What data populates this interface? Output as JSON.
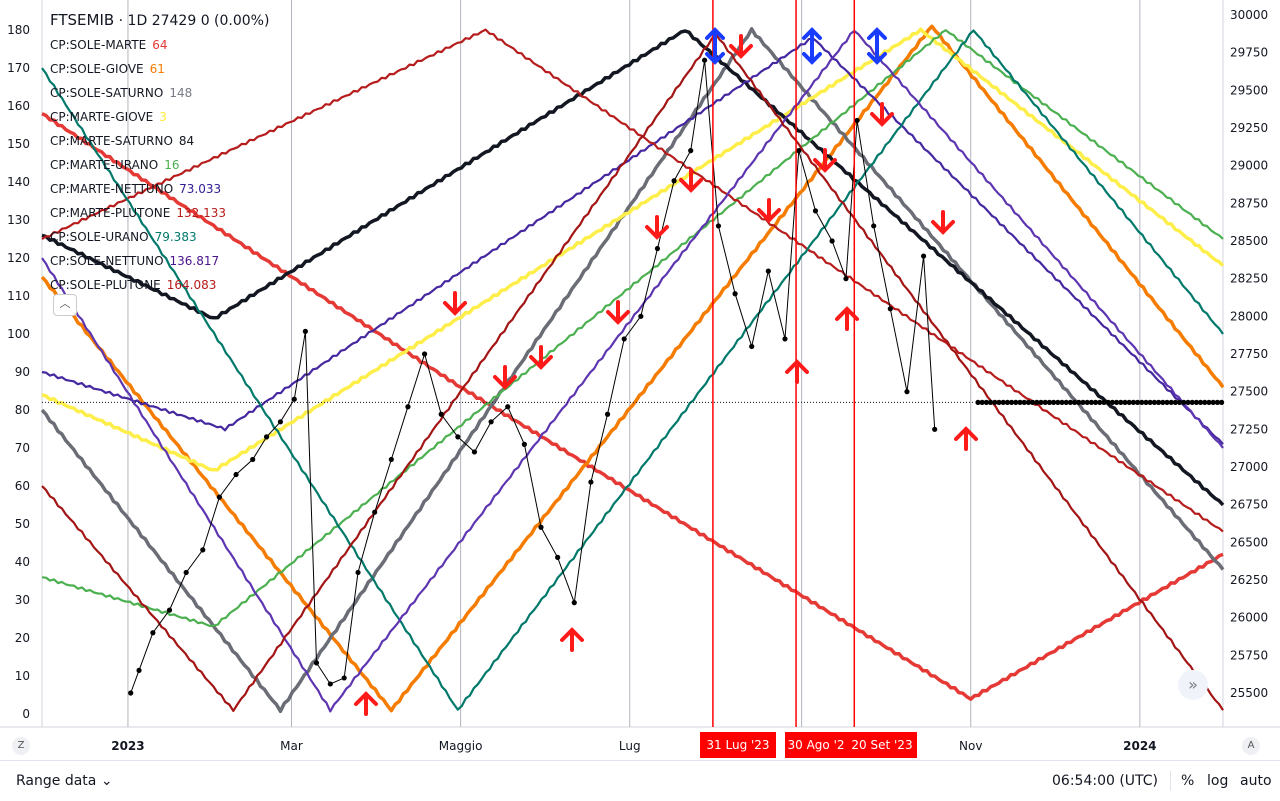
{
  "header": {
    "symbol": "FTSEMIB",
    "dot": "·",
    "interval": "1D",
    "price": "27429",
    "change": "0 (0.00%)"
  },
  "legend": [
    {
      "label": "CP:SOLE-MARTE",
      "value": "64",
      "color": "#e53935"
    },
    {
      "label": "CP:SOLE-GIOVE",
      "value": "61",
      "color": "#f57c00"
    },
    {
      "label": "CP:SOLE-SATURNO",
      "value": "148",
      "color": "#787b86"
    },
    {
      "label": "CP:MARTE-GIOVE",
      "value": "3",
      "color": "#ffeb3b"
    },
    {
      "label": "CP:MARTE-SATURNO",
      "value": "84",
      "color": "#131722"
    },
    {
      "label": "CP:MARTE-URANO",
      "value": "16",
      "color": "#4caf50"
    },
    {
      "label": "CP:MARTE-NETTUNO",
      "value": "73.033",
      "color": "#311b92"
    },
    {
      "label": "CP:MARTE-PLUTONE",
      "value": "132.133",
      "color": "#b71c1c"
    },
    {
      "label": "CP:SOLE-URANO",
      "value": "79.383",
      "color": "#00796b"
    },
    {
      "label": "CP:SOLE-NETTUNO",
      "value": "136.817",
      "color": "#4a148c"
    },
    {
      "label": "CP:SOLE-PLUTONE",
      "value": "164.083",
      "color": "#b71c1c"
    }
  ],
  "colors": {
    "marte": "#e53935",
    "giove": "#f57c00",
    "saturno_sole": "#6a6d75",
    "marte_giove": "#fdee4a",
    "marte_saturno": "#131722",
    "urano_marte": "#4caf50",
    "nettuno_marte": "#4527a0",
    "plutone_marte": "#b71c1c",
    "urano_sole": "#00796b",
    "nettuno_sole": "#5e35b1",
    "plutone_sole": "#a31515",
    "price": "#000000",
    "arrow_red": "#ff1a1a",
    "arrow_blue": "#1a3cff"
  },
  "chart_data": {
    "type": "line",
    "left_axis": {
      "ticks": [
        "180",
        "170",
        "160",
        "150",
        "140",
        "130",
        "120",
        "110",
        "100",
        "90",
        "80",
        "70",
        "60",
        "50",
        "40",
        "30",
        "20",
        "10",
        "0"
      ],
      "range": [
        0,
        180
      ]
    },
    "right_axis": {
      "ticks": [
        "30000",
        "29750",
        "29500",
        "29250",
        "29000",
        "28750",
        "28500",
        "28250",
        "28000",
        "27750",
        "27500",
        "27250",
        "27000",
        "26750",
        "26500",
        "26250",
        "26000",
        "25750",
        "25500"
      ],
      "range": [
        25500,
        30000
      ]
    },
    "x_axis": {
      "ticks": [
        "2023",
        "Mar",
        "Maggio",
        "Lug",
        "Nov",
        "2024"
      ],
      "range": [
        "2022-12-01",
        "2024-01-31"
      ]
    },
    "event_labels": [
      "31 Lug '23",
      "30 Ago '2",
      "20 Set '23"
    ],
    "price_series": {
      "name": "FTSEMIB",
      "x": [
        "2023-01-02",
        "2023-01-05",
        "2023-01-10",
        "2023-01-16",
        "2023-01-22",
        "2023-01-28",
        "2023-02-03",
        "2023-02-09",
        "2023-02-15",
        "2023-02-20",
        "2023-02-25",
        "2023-03-02",
        "2023-03-06",
        "2023-03-10",
        "2023-03-15",
        "2023-03-20",
        "2023-03-25",
        "2023-03-31",
        "2023-04-06",
        "2023-04-12",
        "2023-04-18",
        "2023-04-24",
        "2023-04-30",
        "2023-05-06",
        "2023-05-12",
        "2023-05-18",
        "2023-05-24",
        "2023-05-30",
        "2023-06-05",
        "2023-06-11",
        "2023-06-17",
        "2023-06-23",
        "2023-06-29",
        "2023-07-05",
        "2023-07-11",
        "2023-07-17",
        "2023-07-23",
        "2023-07-28",
        "2023-08-02",
        "2023-08-08",
        "2023-08-14",
        "2023-08-20",
        "2023-08-26",
        "2023-08-31",
        "2023-09-06",
        "2023-09-12",
        "2023-09-17",
        "2023-09-21",
        "2023-09-27",
        "2023-10-03",
        "2023-10-09",
        "2023-10-15",
        "2023-10-19"
      ],
      "y": [
        25500,
        25650,
        25900,
        26050,
        26300,
        26450,
        26800,
        26950,
        27050,
        27200,
        27300,
        27450,
        27900,
        25700,
        25560,
        25600,
        26300,
        26700,
        27050,
        27400,
        27750,
        27350,
        27200,
        27100,
        27300,
        27400,
        27150,
        26600,
        26400,
        26100,
        26900,
        27350,
        27850,
        28000,
        28450,
        28900,
        29100,
        29700,
        28600,
        28150,
        27800,
        28300,
        27850,
        29100,
        28700,
        28500,
        28250,
        29300,
        28600,
        28050,
        27500,
        28400,
        27250
      ]
    },
    "reference_price": 27429,
    "series": [
      {
        "name": "SOLE-MARTE",
        "x": [
          "2022-12-01",
          "2023-05-01",
          "2023-11-01",
          "2024-01-31"
        ],
        "y": [
          158,
          86,
          4,
          42
        ]
      },
      {
        "name": "SOLE-GIOVE",
        "x": [
          "2022-12-01",
          "2023-04-06",
          "2023-10-18",
          "2024-01-31"
        ],
        "y": [
          115,
          1,
          181,
          86
        ]
      },
      {
        "name": "SOLE-SATURNO",
        "x": [
          "2022-12-01",
          "2023-02-25",
          "2023-08-14",
          "2024-01-31"
        ],
        "y": [
          80,
          1,
          180,
          38
        ]
      },
      {
        "name": "MARTE-GIOVE",
        "x": [
          "2022-12-01",
          "2023-02-01",
          "2023-10-14",
          "2024-01-31"
        ],
        "y": [
          84,
          64,
          180,
          118
        ]
      },
      {
        "name": "MARTE-SATURNO",
        "x": [
          "2022-12-01",
          "2023-02-01",
          "2023-07-21",
          "2024-01-31"
        ],
        "y": [
          126,
          104,
          180,
          55
        ]
      },
      {
        "name": "MARTE-URANO",
        "x": [
          "2022-12-01",
          "2023-02-01",
          "2023-10-23",
          "2024-01-31"
        ],
        "y": [
          36,
          23,
          180,
          125
        ]
      },
      {
        "name": "MARTE-NETTUNO",
        "x": [
          "2022-12-01",
          "2023-02-05",
          "2023-09-05",
          "2024-01-31"
        ],
        "y": [
          90,
          75,
          178,
          71
        ]
      },
      {
        "name": "MARTE-PLUTONE",
        "x": [
          "2022-12-01",
          "2023-05-10",
          "2024-01-31"
        ],
        "y": [
          125,
          180,
          48
        ]
      },
      {
        "name": "SOLE-URANO",
        "x": [
          "2022-12-01",
          "2023-04-30",
          "2023-11-02",
          "2024-01-31"
        ],
        "y": [
          170,
          1,
          180,
          100
        ]
      },
      {
        "name": "SOLE-NETTUNO",
        "x": [
          "2022-12-01",
          "2023-03-15",
          "2023-09-20",
          "2024-01-31"
        ],
        "y": [
          120,
          1,
          180,
          70
        ]
      },
      {
        "name": "SOLE-PLUTONE",
        "x": [
          "2022-12-01",
          "2023-02-08",
          "2023-08-01",
          "2024-01-31"
        ],
        "y": [
          60,
          1,
          179,
          1
        ]
      }
    ]
  },
  "footer": {
    "range": "Range data",
    "chevron": "⌄",
    "time": "06:54:00 (UTC)",
    "pct": "%",
    "log": "log",
    "auto": "auto"
  },
  "corners": {
    "left": "Z",
    "right": "A"
  }
}
